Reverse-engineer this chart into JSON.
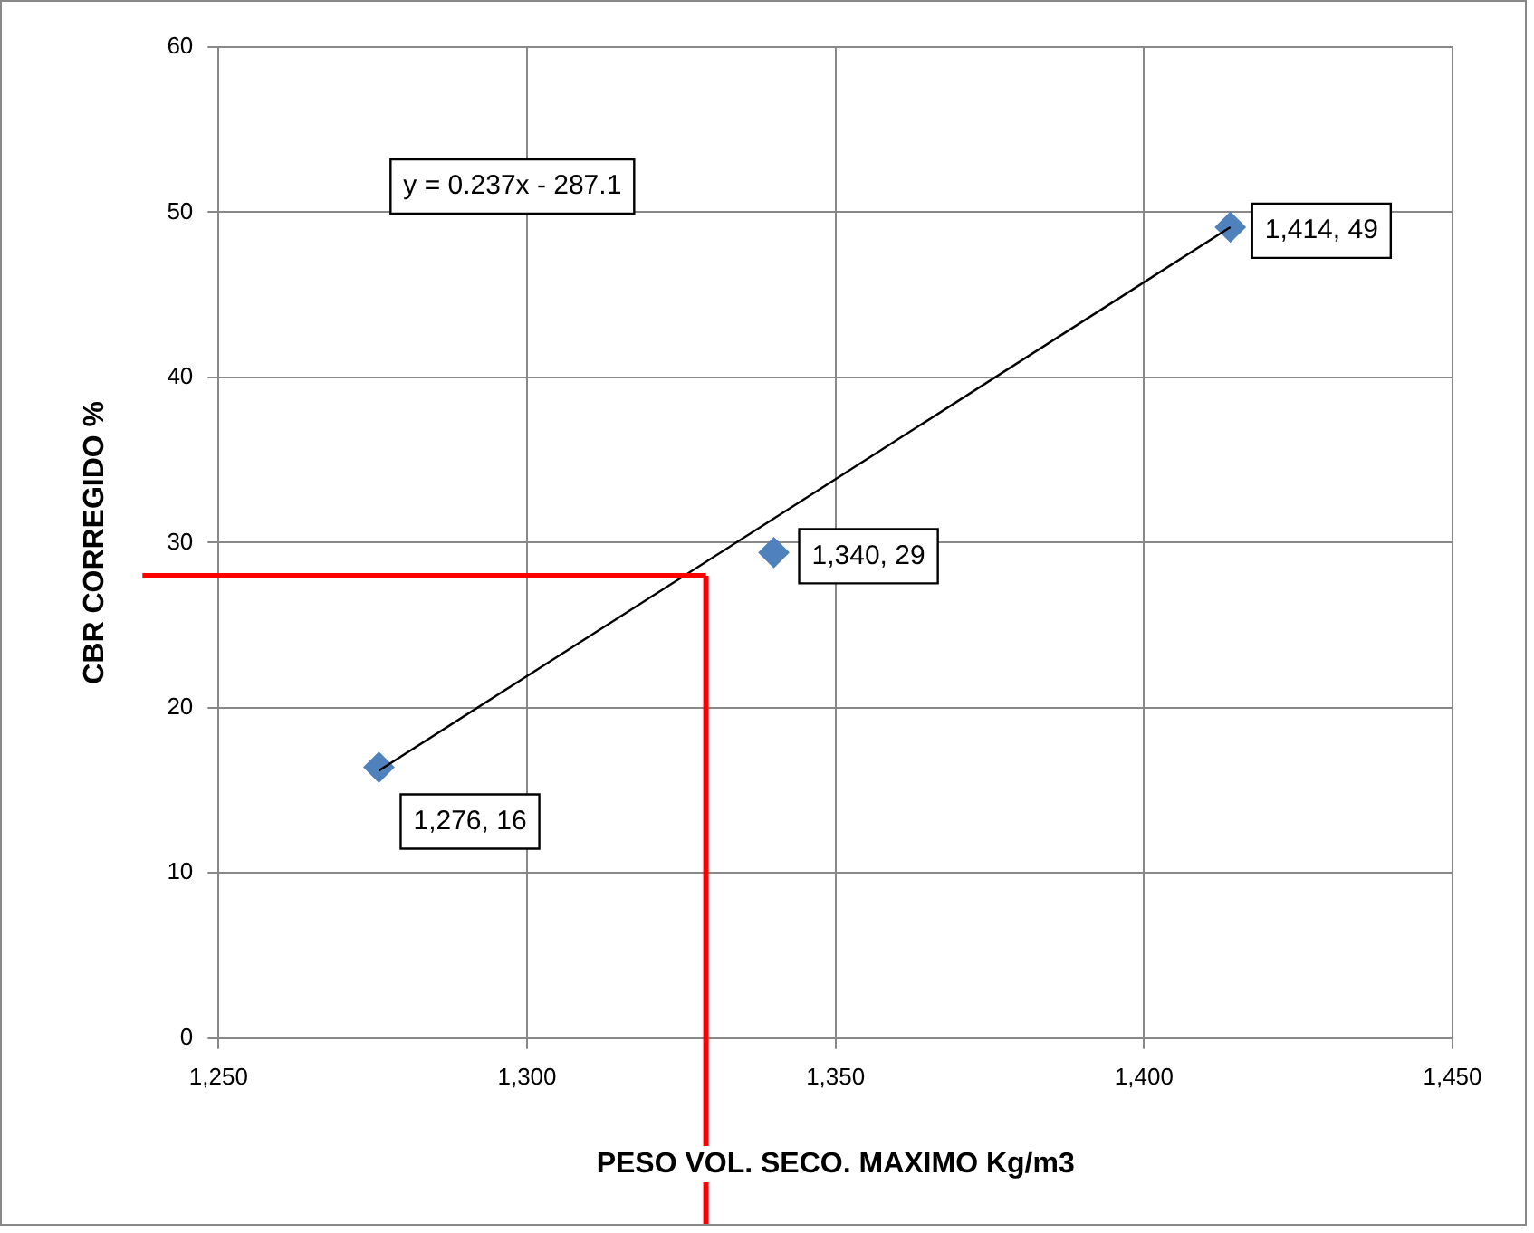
{
  "chart_data": {
    "type": "scatter",
    "xlabel": "PESO VOL. SECO. MAXIMO Kg/m3",
    "ylabel": "CBR CORREGIDO %",
    "xlim": [
      1250,
      1450
    ],
    "xticks": [
      {
        "value": 1250,
        "label": "1,250"
      },
      {
        "value": 1300,
        "label": "1,300"
      },
      {
        "value": 1350,
        "label": "1,350"
      },
      {
        "value": 1400,
        "label": "1,400"
      },
      {
        "value": 1450,
        "label": "1,450"
      }
    ],
    "ylim": [
      0,
      60
    ],
    "yticks": [
      0,
      10,
      20,
      30,
      40,
      50,
      60
    ],
    "grid": true,
    "legend": false,
    "marker": "diamond",
    "series": [
      {
        "type": "scatter",
        "color": "#4f81bd",
        "x": [
          1276,
          1340,
          1414
        ],
        "values": [
          16.4,
          29.4,
          49.1
        ],
        "value_labels": [
          "1,276, 16",
          "1,340, 29",
          "1,414, 49"
        ]
      },
      {
        "type": "line",
        "color": "#000000",
        "x": [
          1276,
          1414
        ],
        "values": [
          16.2,
          49.1
        ],
        "marker": "none"
      }
    ],
    "ref_lines": [
      {
        "axis": "x",
        "value": 1329,
        "color": "#ff0000"
      },
      {
        "axis": "y",
        "value": 28,
        "color": "#ff0000"
      }
    ],
    "annotations": [
      "y = 0.237x - 287.1"
    ]
  }
}
